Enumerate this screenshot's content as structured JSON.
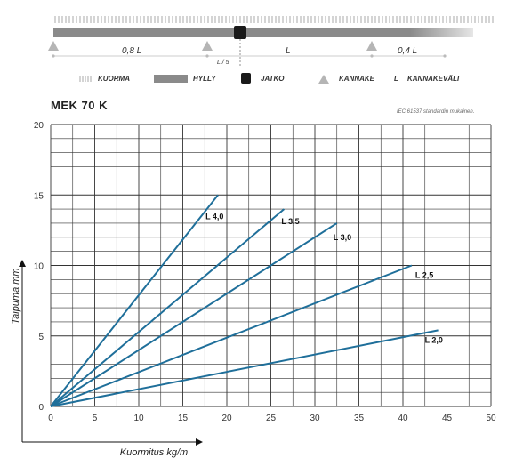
{
  "diagram": {
    "spans": {
      "left": "0,8 L",
      "middle": "L",
      "right": "0,4 L"
    },
    "joint_offset": "L / 5",
    "legend": [
      {
        "key": "kuorma",
        "label": "KUORMA",
        "icon": "hatch-lines-icon"
      },
      {
        "key": "hylly",
        "label": "HYLLY",
        "icon": "gray-bar-icon"
      },
      {
        "key": "jatko",
        "label": "JATKO",
        "icon": "black-square-icon"
      },
      {
        "key": "kannake",
        "label": "KANNAKE",
        "icon": "triangle-icon"
      },
      {
        "key": "kannakevali",
        "label": "KANNAKEVÄLI",
        "symbol": "L"
      }
    ],
    "colors": {
      "shelf": "#8a8a8a",
      "support": "#b5b5b5",
      "joint": "#1a1a1a",
      "load": "#aaaaaa"
    }
  },
  "chart_title": "MEK 70 K",
  "standard_note": "IEC 61537 standardin mukainen.",
  "chart_data": {
    "type": "line",
    "xlabel": "Kuormitus kg/m",
    "ylabel": "Taipuma mm",
    "xlim": [
      0,
      50
    ],
    "ylim": [
      0,
      20
    ],
    "xticks": [
      0,
      5,
      10,
      15,
      20,
      25,
      30,
      35,
      40,
      45,
      50
    ],
    "yticks": [
      0,
      5,
      10,
      15,
      20
    ],
    "grid": true,
    "line_color": "#1f6f9a",
    "series": [
      {
        "name": "L 4,0",
        "x": [
          0,
          19
        ],
        "y": [
          0,
          15.0
        ]
      },
      {
        "name": "L 3,5",
        "x": [
          0,
          26.5
        ],
        "y": [
          0,
          14.0
        ]
      },
      {
        "name": "L 3,0",
        "x": [
          0,
          32.5
        ],
        "y": [
          0,
          13.0
        ]
      },
      {
        "name": "L 2,5",
        "x": [
          0,
          41
        ],
        "y": [
          0,
          10.0
        ]
      },
      {
        "name": "L 2,0",
        "x": [
          0,
          44
        ],
        "y": [
          0,
          5.4
        ]
      }
    ]
  }
}
